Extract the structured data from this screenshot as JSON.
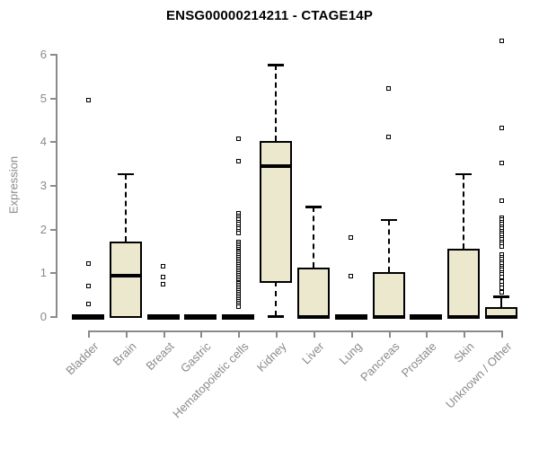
{
  "chart_data": {
    "type": "boxplot",
    "title": "ENSG00000214211 - CTAGE14P",
    "ylabel": "Expression",
    "xlabel": "",
    "ylim": [
      0,
      6
    ],
    "yticks": [
      0,
      1,
      2,
      3,
      4,
      5,
      6
    ],
    "grid": false,
    "legend": "none",
    "colors": {
      "box_fill": "#ece8cd",
      "box_border": "#000000",
      "median": "#000000",
      "axis": "#8a8a8a",
      "tick_text": "#8a8a8a",
      "title_text": "#000000",
      "background": "#ffffff"
    },
    "categories": [
      "Bladder",
      "Brain",
      "Breast",
      "Gastric",
      "Hematopoietic cells",
      "Kidney",
      "Liver",
      "Lung",
      "Pancreas",
      "Prostate",
      "Skin",
      "Unknown / Other"
    ],
    "series": [
      {
        "name": "Bladder",
        "whisker_low": 0,
        "q1": 0,
        "median": 0,
        "q3": 0,
        "whisker_high": 0,
        "outliers": [
          4.95,
          1.2,
          0.68,
          0.27
        ]
      },
      {
        "name": "Brain",
        "whisker_low": 0,
        "q1": 0,
        "median": 0.95,
        "q3": 1.7,
        "whisker_high": 3.25,
        "outliers": []
      },
      {
        "name": "Breast",
        "whisker_low": 0,
        "q1": 0,
        "median": 0,
        "q3": 0,
        "whisker_high": 0,
        "outliers": [
          1.15,
          0.9,
          0.72
        ]
      },
      {
        "name": "Gastric",
        "whisker_low": 0,
        "q1": 0,
        "median": 0,
        "q3": 0,
        "whisker_high": 0,
        "outliers": []
      },
      {
        "name": "Hematopoietic cells",
        "whisker_low": 0,
        "q1": 0,
        "median": 0,
        "q3": 0,
        "whisker_high": 0,
        "outliers": [
          4.05,
          3.55,
          2.35,
          2.3,
          2.25,
          2.2,
          2.15,
          2.1,
          2.05,
          2.0,
          1.95,
          1.9,
          1.7,
          1.66,
          1.62,
          1.58,
          1.54,
          1.5,
          1.46,
          1.42,
          1.38,
          1.34,
          1.3,
          1.26,
          1.22,
          1.18,
          1.14,
          1.1,
          1.06,
          1.02,
          0.98,
          0.94,
          0.9,
          0.86,
          0.82,
          0.78,
          0.74,
          0.7,
          0.66,
          0.62,
          0.58,
          0.54,
          0.5,
          0.46,
          0.42,
          0.38,
          0.34,
          0.3,
          0.26,
          0.22
        ]
      },
      {
        "name": "Kidney",
        "whisker_low": 0,
        "q1": 0.8,
        "median": 3.45,
        "q3": 4.0,
        "whisker_high": 5.75,
        "outliers": []
      },
      {
        "name": "Liver",
        "whisker_low": 0,
        "q1": 0,
        "median": 0,
        "q3": 1.1,
        "whisker_high": 2.5,
        "outliers": []
      },
      {
        "name": "Lung",
        "whisker_low": 0,
        "q1": 0,
        "median": 0,
        "q3": 0,
        "whisker_high": 0,
        "outliers": [
          1.8,
          0.92
        ]
      },
      {
        "name": "Pancreas",
        "whisker_low": 0,
        "q1": 0,
        "median": 0,
        "q3": 1.0,
        "whisker_high": 2.2,
        "outliers": [
          5.2,
          4.1
        ]
      },
      {
        "name": "Prostate",
        "whisker_low": 0,
        "q1": 0,
        "median": 0,
        "q3": 0,
        "whisker_high": 0,
        "outliers": []
      },
      {
        "name": "Skin",
        "whisker_low": 0,
        "q1": 0,
        "median": 0,
        "q3": 1.55,
        "whisker_high": 3.25,
        "outliers": []
      },
      {
        "name": "Unknown / Other",
        "whisker_low": 0,
        "q1": 0,
        "median": 0,
        "q3": 0.2,
        "whisker_high": 0.45,
        "outliers": [
          6.3,
          4.3,
          3.5,
          2.65,
          2.25,
          2.2,
          2.15,
          2.1,
          2.05,
          2.0,
          1.95,
          1.9,
          1.85,
          1.8,
          1.75,
          1.7,
          1.65,
          1.6,
          1.4,
          1.35,
          1.3,
          1.25,
          1.2,
          1.15,
          1.1,
          1.05,
          1.0,
          0.95,
          0.9,
          0.8,
          0.7,
          0.65,
          0.55
        ]
      }
    ]
  }
}
